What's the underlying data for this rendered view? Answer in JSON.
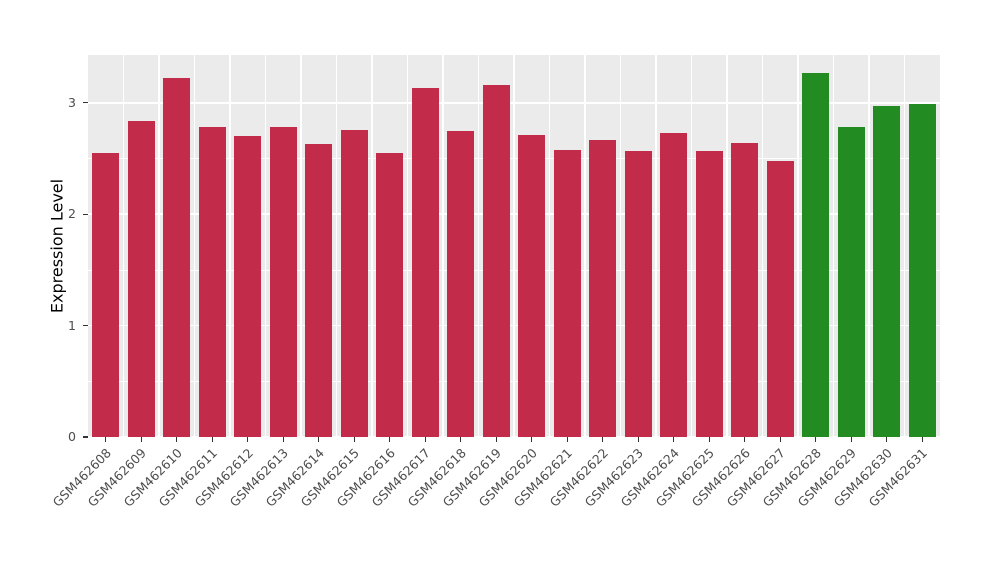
{
  "chart_data": {
    "type": "bar",
    "title": "",
    "xlabel": "",
    "ylabel": "Expression Level",
    "ylim": [
      0,
      3.43
    ],
    "yticks": [
      0,
      1,
      2,
      3
    ],
    "grid": "on",
    "legend_position": "none",
    "panel_background": "#EBEBEB",
    "grid_color": "#FFFFFF",
    "tick_label_color": "#4D4D4D",
    "group_colors": {
      "control": "#C32B4A",
      "highlighted": "#228B22"
    },
    "categories": [
      "GSM462608",
      "GSM462609",
      "GSM462610",
      "GSM462611",
      "GSM462612",
      "GSM462613",
      "GSM462614",
      "GSM462615",
      "GSM462616",
      "GSM462617",
      "GSM462618",
      "GSM462619",
      "GSM462620",
      "GSM462621",
      "GSM462622",
      "GSM462623",
      "GSM462624",
      "GSM462625",
      "GSM462626",
      "GSM462627",
      "GSM462628",
      "GSM462629",
      "GSM462630",
      "GSM462631"
    ],
    "values": [
      2.55,
      2.84,
      3.22,
      2.78,
      2.7,
      2.78,
      2.63,
      2.76,
      2.55,
      3.13,
      2.75,
      3.16,
      2.71,
      2.58,
      2.67,
      2.57,
      2.73,
      2.57,
      2.64,
      2.48,
      3.27,
      2.78,
      2.97,
      2.99
    ],
    "bar_colors": [
      "#C32B4A",
      "#C32B4A",
      "#C32B4A",
      "#C32B4A",
      "#C32B4A",
      "#C32B4A",
      "#C32B4A",
      "#C32B4A",
      "#C32B4A",
      "#C32B4A",
      "#C32B4A",
      "#C32B4A",
      "#C32B4A",
      "#C32B4A",
      "#C32B4A",
      "#C32B4A",
      "#C32B4A",
      "#C32B4A",
      "#C32B4A",
      "#C32B4A",
      "#228B22",
      "#228B22",
      "#228B22",
      "#228B22"
    ]
  }
}
